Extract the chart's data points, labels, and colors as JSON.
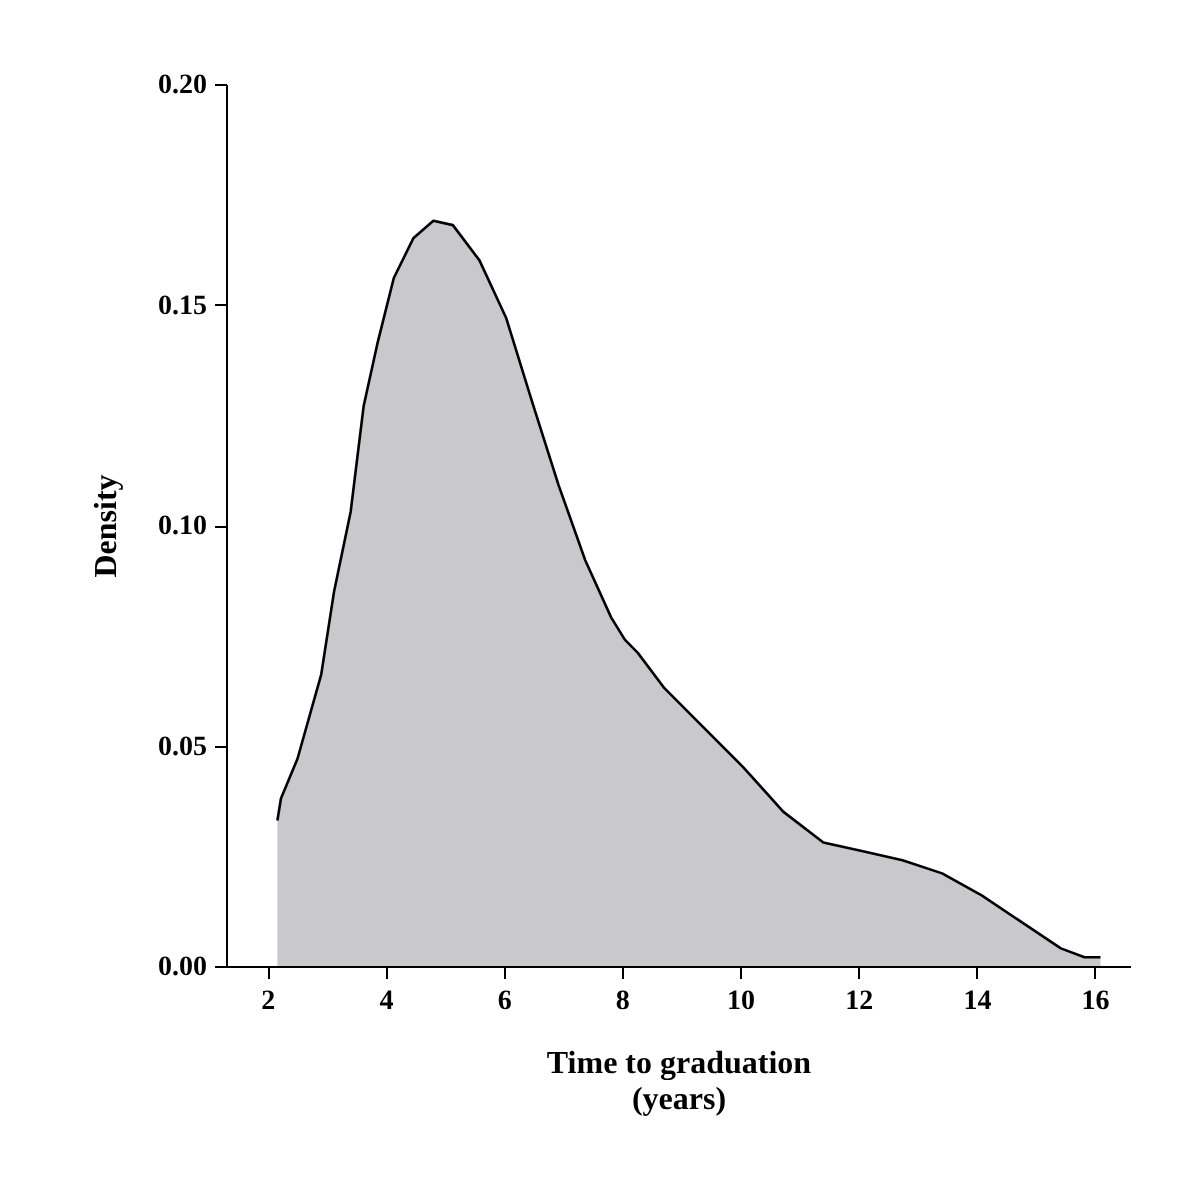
{
  "chart_data": {
    "type": "area",
    "xlabel": "Time to graduation\n(years)",
    "ylabel": "Density",
    "x": [
      2.17,
      2.23,
      2.51,
      2.91,
      3.13,
      3.41,
      3.63,
      3.86,
      4.14,
      4.47,
      4.81,
      5.14,
      5.59,
      6.04,
      6.48,
      6.93,
      7.38,
      7.82,
      8.05,
      8.27,
      8.72,
      9.39,
      10.06,
      10.73,
      11.41,
      12.08,
      12.75,
      13.42,
      14.09,
      14.76,
      15.43,
      15.83,
      16.1
    ],
    "series": [
      {
        "color": "#b2b1b6",
        "values": [
          0.033,
          0.038,
          0.047,
          0.066,
          0.085,
          0.103,
          0.127,
          0.141,
          0.156,
          0.165,
          0.169,
          0.168,
          0.16,
          0.147,
          0.128,
          0.109,
          0.092,
          0.079,
          0.074,
          0.071,
          0.063,
          0.054,
          0.045,
          0.035,
          0.028,
          0.026,
          0.024,
          0.021,
          0.016,
          0.01,
          0.004,
          0.002,
          0.002
        ]
      }
    ],
    "xlim": [
      1.3,
      16.6
    ],
    "xticks": [
      2,
      4,
      6,
      8,
      10,
      12,
      14,
      16
    ],
    "ylim": [
      0,
      0.2
    ],
    "yticks": [
      {
        "value": 0,
        "label": "0.00"
      },
      {
        "value": 0.05,
        "label": "0.05"
      },
      {
        "value": 0.1,
        "label": "0.10"
      },
      {
        "value": 0.15,
        "label": "0.15"
      },
      {
        "value": 0.2,
        "label": "0.20"
      }
    ],
    "grid": false
  }
}
